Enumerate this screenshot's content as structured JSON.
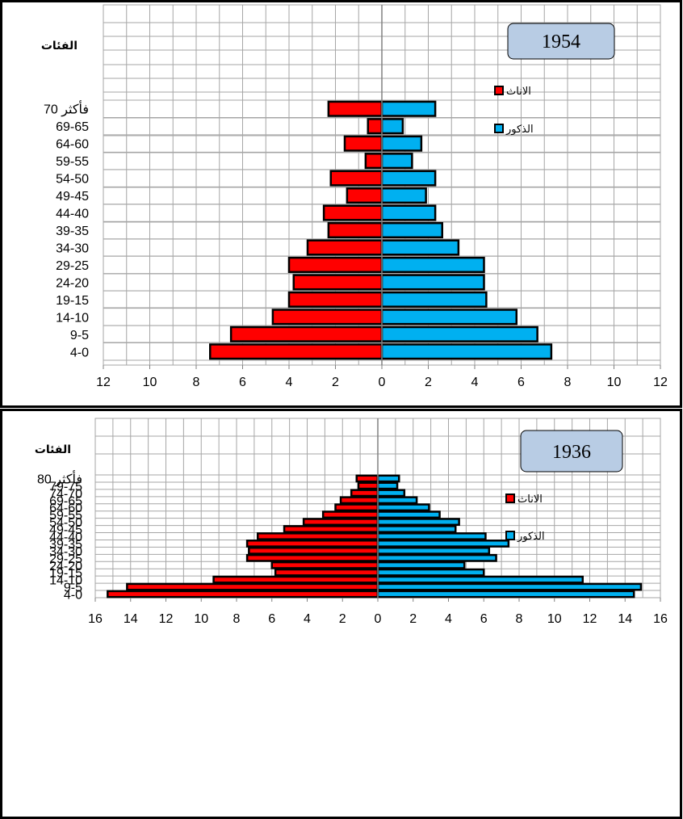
{
  "colors": {
    "female": "#ff0000",
    "male": "#00b0f0",
    "year_box": "#b8cce4",
    "grid": "#a6a6a6"
  },
  "chart_data": [
    {
      "type": "bar",
      "orientation": "horizontal-population-pyramid",
      "year_label": "1954",
      "categories_title": "الفئات",
      "legend": {
        "female": "الاناث",
        "male": "الذكور"
      },
      "xlim": [
        -12,
        12
      ],
      "x_ticks": [
        "12",
        "10",
        "8",
        "6",
        "4",
        "2",
        "0",
        "2",
        "4",
        "6",
        "8",
        "10",
        "12"
      ],
      "categories": [
        "4-0",
        "9-5",
        "14-10",
        "19-15",
        "24-20",
        "29-25",
        "34-30",
        "39-35",
        "44-40",
        "49-45",
        "54-50",
        "59-55",
        "64-60",
        "69-65",
        "70 فأكثر"
      ],
      "series": [
        {
          "name": "الاناث",
          "values": [
            7.4,
            6.5,
            4.7,
            4.0,
            3.8,
            4.0,
            3.2,
            2.3,
            2.5,
            1.5,
            2.2,
            0.7,
            1.6,
            0.6,
            2.3
          ]
        },
        {
          "name": "الذكور",
          "values": [
            7.3,
            6.7,
            5.8,
            4.5,
            4.4,
            4.4,
            3.3,
            2.6,
            2.3,
            1.9,
            2.3,
            1.3,
            1.7,
            0.9,
            2.3
          ]
        }
      ]
    },
    {
      "type": "bar",
      "orientation": "horizontal-population-pyramid",
      "year_label": "1936",
      "categories_title": "الفئات",
      "legend": {
        "female": "الاناث",
        "male": "الذكور"
      },
      "xlim": [
        -16,
        16
      ],
      "x_ticks": [
        "16",
        "14",
        "12",
        "10",
        "8",
        "6",
        "4",
        "2",
        "0",
        "2",
        "4",
        "6",
        "8",
        "10",
        "12",
        "14",
        "16"
      ],
      "categories": [
        "4-0",
        "9-5",
        "14-10",
        "19-15",
        "24-20",
        "29-25",
        "34-30",
        "39-35",
        "44-40",
        "49-45",
        "54-50",
        "59-55",
        "64-60",
        "69-65",
        "74-70",
        "79-75",
        "80 فأكثر"
      ],
      "series": [
        {
          "name": "الاناث",
          "values": [
            15.3,
            14.2,
            9.3,
            5.8,
            6.0,
            7.4,
            7.3,
            7.4,
            6.8,
            5.3,
            4.2,
            3.1,
            2.4,
            2.1,
            1.5,
            1.1,
            1.2
          ]
        },
        {
          "name": "الذكور",
          "values": [
            14.5,
            14.9,
            11.6,
            6.0,
            4.9,
            6.7,
            6.3,
            7.4,
            6.1,
            4.4,
            4.6,
            3.5,
            2.9,
            2.2,
            1.5,
            1.1,
            1.2
          ]
        }
      ]
    }
  ]
}
